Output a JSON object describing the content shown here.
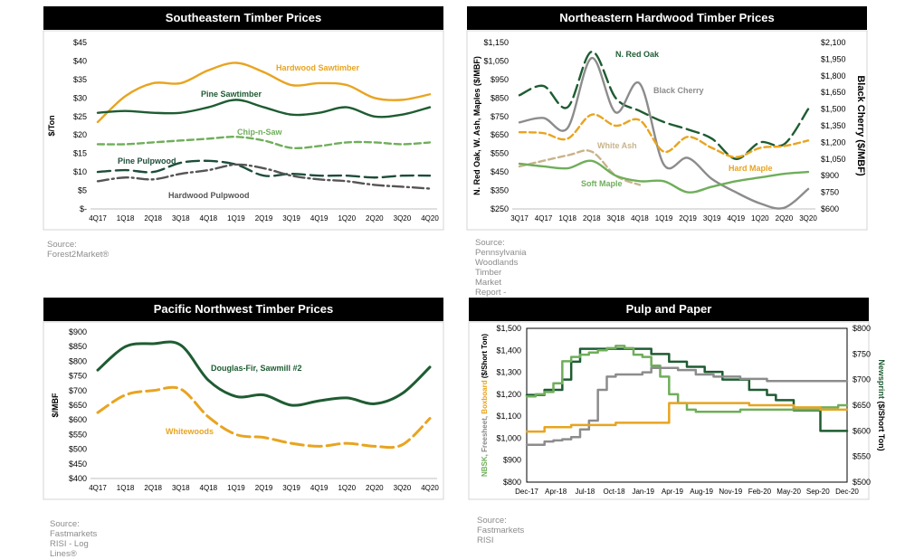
{
  "chart_data": [
    {
      "type": "line",
      "title": "Southeastern Timber Prices",
      "ylabel": "$/Ton",
      "xlabel": "",
      "ylim": [
        0,
        45
      ],
      "yticks": [
        0,
        5,
        10,
        15,
        20,
        25,
        30,
        35,
        40,
        45
      ],
      "ytick_labels": [
        "$-",
        "$5",
        "$10",
        "$15",
        "$20",
        "$25",
        "$30",
        "$35",
        "$40",
        "$45"
      ],
      "categories": [
        "4Q17",
        "1Q18",
        "2Q18",
        "3Q18",
        "4Q18",
        "1Q19",
        "2Q19",
        "3Q19",
        "4Q19",
        "1Q20",
        "2Q20",
        "3Q20",
        "4Q20"
      ],
      "series": [
        {
          "name": "Hardwood Sawtimber",
          "color": "#e8a420",
          "dash": "solid",
          "values": [
            23.5,
            30.5,
            34,
            34,
            37.5,
            39.5,
            37,
            33.5,
            34,
            33.5,
            30,
            29.5,
            31
          ]
        },
        {
          "name": "Pine Sawtimber",
          "color": "#1e5c32",
          "dash": "solid",
          "values": [
            26,
            26.5,
            26,
            26,
            27.5,
            29.5,
            27.5,
            25.5,
            26,
            27.5,
            25,
            25.5,
            27.5
          ]
        },
        {
          "name": "Chip-n-Saw",
          "color": "#6fae5a",
          "dash": "dashed",
          "values": [
            17.5,
            17.5,
            18,
            18.5,
            19,
            19.5,
            18.5,
            16.5,
            17,
            18,
            18,
            17.5,
            18
          ]
        },
        {
          "name": "Pine Pulpwood",
          "color": "#1e4d3a",
          "dash": "longdash",
          "values": [
            10,
            10.5,
            10,
            12.5,
            13,
            12,
            9,
            9.5,
            9,
            9,
            8.5,
            9,
            9
          ]
        },
        {
          "name": "Hardwood Pulpwood",
          "color": "#555555",
          "dash": "dashdot",
          "values": [
            7.5,
            8.5,
            8,
            9.5,
            10.5,
            12,
            11,
            9,
            8,
            7.5,
            6.5,
            6,
            5.5
          ]
        }
      ],
      "source": "Source: Forest2Market®"
    },
    {
      "type": "line",
      "title": "Northeastern Hardwood Timber Prices",
      "ylabel": "N. Red Oak, W. Ash, Maples ($/MBF)",
      "y2label": "Black Cherry ($/MBF)",
      "ylim": [
        250,
        1150
      ],
      "y2lim": [
        600,
        2100
      ],
      "yticks": [
        250,
        350,
        450,
        550,
        650,
        750,
        850,
        950,
        1050,
        1150
      ],
      "ytick_labels": [
        "$250",
        "$350",
        "$450",
        "$550",
        "$650",
        "$750",
        "$850",
        "$950",
        "$1,050",
        "$1,150"
      ],
      "y2ticks": [
        600,
        750,
        900,
        1050,
        1200,
        1350,
        1500,
        1650,
        1800,
        1950,
        2100
      ],
      "y2tick_labels": [
        "$600",
        "$750",
        "$900",
        "$1,050",
        "$1,200",
        "$1,350",
        "$1,500",
        "$1,650",
        "$1,800",
        "$1,950",
        "$2,100"
      ],
      "categories": [
        "3Q17",
        "4Q17",
        "1Q18",
        "2Q18",
        "3Q18",
        "4Q18",
        "1Q19",
        "2Q19",
        "3Q19",
        "4Q19",
        "1Q20",
        "2Q20",
        "3Q20"
      ],
      "series": [
        {
          "name": "N. Red Oak",
          "color": "#1e5c32",
          "dash": "longdash",
          "axis": "left",
          "values": [
            865,
            915,
            800,
            1100,
            850,
            780,
            720,
            680,
            630,
            520,
            610,
            600,
            790
          ]
        },
        {
          "name": "Black Cherry",
          "color": "#8c8c8c",
          "dash": "solid",
          "axis": "right",
          "values": [
            1380,
            1420,
            1330,
            1960,
            1470,
            1730,
            1000,
            1060,
            870,
            750,
            650,
            610,
            780
          ]
        },
        {
          "name": "Hard Maple",
          "color": "#e8a420",
          "dash": "dashed",
          "axis": "left",
          "values": [
            665,
            660,
            630,
            760,
            700,
            730,
            560,
            640,
            580,
            530,
            580,
            590,
            620
          ]
        },
        {
          "name": "White Ash",
          "color": "#c8b48c",
          "dash": "dashed",
          "axis": "left",
          "values": [
            480,
            null,
            540,
            560,
            430,
            380,
            null,
            null,
            null,
            null,
            null,
            null,
            null
          ]
        },
        {
          "name": "Soft Maple",
          "color": "#6fae5a",
          "dash": "solid",
          "axis": "left",
          "values": [
            495,
            480,
            470,
            510,
            430,
            400,
            400,
            340,
            370,
            400,
            420,
            440,
            450
          ]
        }
      ],
      "source": "Source: Pennsylvania Woodlands Timber Market Report - Northwest Region"
    },
    {
      "type": "line",
      "title": "Pacific Northwest Timber Prices",
      "ylabel": "$/MBF",
      "xlabel": "",
      "ylim": [
        400,
        900
      ],
      "yticks": [
        400,
        450,
        500,
        550,
        600,
        650,
        700,
        750,
        800,
        850,
        900
      ],
      "ytick_labels": [
        "$400",
        "$450",
        "$500",
        "$550",
        "$600",
        "$650",
        "$700",
        "$750",
        "$800",
        "$850",
        "$900"
      ],
      "categories": [
        "4Q17",
        "1Q18",
        "2Q18",
        "3Q18",
        "4Q18",
        "1Q19",
        "2Q19",
        "3Q19",
        "4Q19",
        "1Q20",
        "2Q20",
        "3Q20",
        "4Q20"
      ],
      "series": [
        {
          "name": "Douglas-Fir, Sawmill #2",
          "color": "#1e5c32",
          "dash": "solid",
          "values": [
            770,
            850,
            860,
            855,
            735,
            680,
            685,
            650,
            665,
            675,
            655,
            690,
            780
          ]
        },
        {
          "name": "Whitewoods",
          "color": "#e8a420",
          "dash": "longdash",
          "values": [
            625,
            685,
            700,
            705,
            610,
            550,
            540,
            520,
            510,
            520,
            510,
            515,
            605
          ]
        }
      ],
      "source": "Source: Fastmarkets RISI - Log Lines®"
    },
    {
      "type": "line",
      "title": "Pulp and Paper",
      "ylabel_parts": [
        {
          "text": "NBSK",
          "color": "#6fae5a"
        },
        {
          "text": ", Freesheet, ",
          "color": "#8c8c8c"
        },
        {
          "text": "Boxboard",
          "color": "#e8a420"
        },
        {
          "text": " ($/Short Ton)",
          "color": "#000000"
        }
      ],
      "y2label_parts": [
        {
          "text": "Newsprint",
          "color": "#1e5c32"
        },
        {
          "text": " ($/Short Ton)",
          "color": "#000000"
        }
      ],
      "ylim": [
        800,
        1500
      ],
      "y2lim": [
        500,
        800
      ],
      "yticks": [
        800,
        900,
        1000,
        1100,
        1200,
        1300,
        1400,
        1500
      ],
      "ytick_labels": [
        "$800",
        "$900",
        "$1,000",
        "$1,100",
        "$1,200",
        "$1,300",
        "$1,400",
        "$1,500"
      ],
      "y2ticks": [
        500,
        550,
        600,
        650,
        700,
        750,
        800
      ],
      "y2tick_labels": [
        "$500",
        "$550",
        "$600",
        "$650",
        "$700",
        "$750",
        "$800"
      ],
      "categories": [
        "Dec-17",
        "Apr-18",
        "Jul-18",
        "Oct-18",
        "Jan-19",
        "Apr-19",
        "Aug-19",
        "Nov-19",
        "Feb-20",
        "May-20",
        "Sep-20",
        "Dec-20"
      ],
      "x_months": 36,
      "series": [
        {
          "name": "Newsprint",
          "color": "#1e5c32",
          "dash": "solid",
          "axis": "right",
          "step": true,
          "x": [
            0,
            2,
            4,
            5,
            6,
            12,
            14,
            16,
            18,
            20,
            22,
            25,
            27,
            28,
            30,
            33,
            36
          ],
          "values": [
            670,
            680,
            700,
            735,
            760,
            760,
            750,
            735,
            725,
            715,
            700,
            680,
            670,
            660,
            640,
            600,
            600
          ]
        },
        {
          "name": "NBSK",
          "color": "#6fae5a",
          "dash": "solid",
          "axis": "left",
          "step": true,
          "x": [
            0,
            1,
            2,
            3,
            4,
            5,
            6,
            7,
            8,
            9,
            10,
            11,
            12,
            13,
            14,
            15,
            16,
            17,
            18,
            19,
            20,
            21,
            22,
            24,
            27,
            30,
            33,
            35,
            36
          ],
          "values": [
            1190,
            1200,
            1210,
            1250,
            1350,
            1370,
            1380,
            1390,
            1400,
            1410,
            1420,
            1410,
            1380,
            1370,
            1330,
            1280,
            1200,
            1160,
            1130,
            1120,
            1120,
            1120,
            1120,
            1130,
            1130,
            1130,
            1140,
            1150,
            1150
          ]
        },
        {
          "name": "Freesheet",
          "color": "#8c8c8c",
          "dash": "solid",
          "axis": "left",
          "step": true,
          "x": [
            0,
            2,
            3,
            4,
            5,
            6,
            7,
            8,
            9,
            10,
            12,
            13,
            14,
            15,
            17,
            19,
            21,
            24,
            27,
            30,
            33,
            36
          ],
          "values": [
            970,
            985,
            990,
            995,
            1005,
            1040,
            1080,
            1220,
            1280,
            1290,
            1290,
            1300,
            1320,
            1320,
            1310,
            1290,
            1280,
            1270,
            1260,
            1260,
            1260,
            1260
          ]
        },
        {
          "name": "Boxboard",
          "color": "#e8a420",
          "dash": "solid",
          "axis": "left",
          "step": true,
          "x": [
            0,
            2,
            5,
            10,
            15,
            16,
            20,
            25,
            30,
            33,
            36
          ],
          "values": [
            1030,
            1050,
            1060,
            1070,
            1070,
            1160,
            1160,
            1150,
            1140,
            1130,
            1130
          ]
        }
      ],
      "source": "Source: Fastmarkets RISI"
    }
  ]
}
